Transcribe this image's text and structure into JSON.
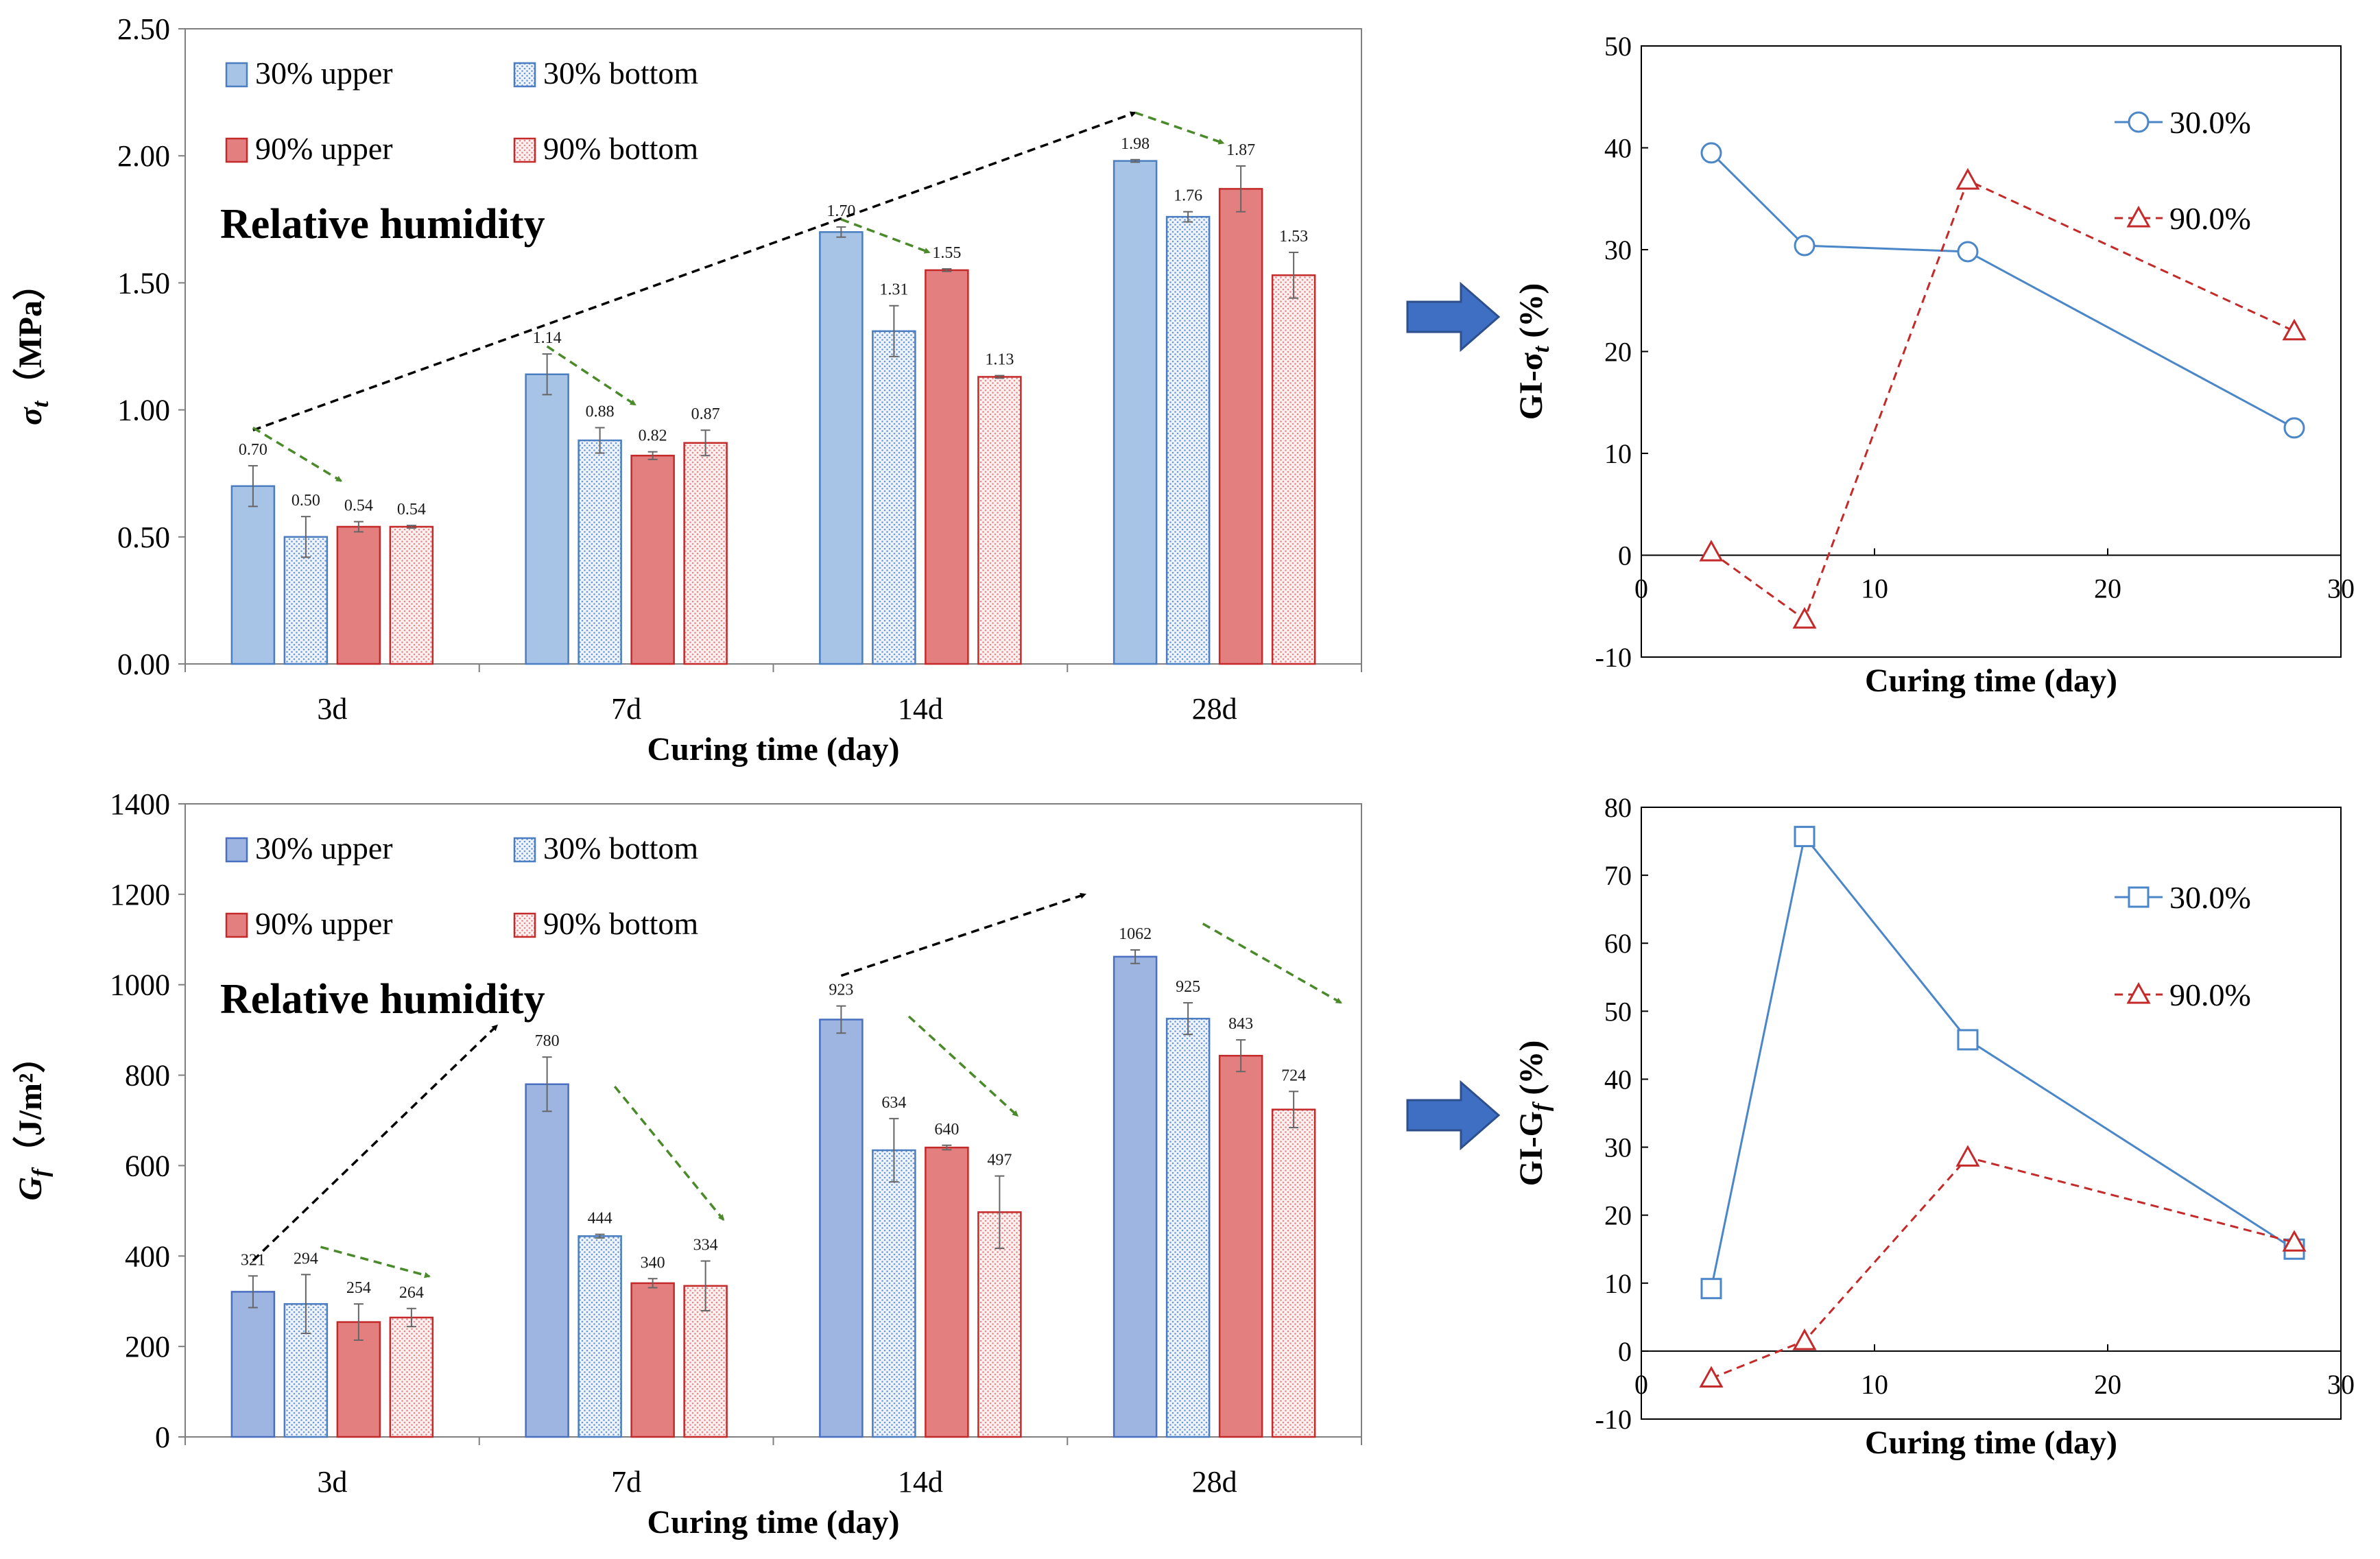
{
  "chart_data": [
    {
      "id": "tensile-bar-chart",
      "type": "bar",
      "title": "",
      "xlabel": "Curing time (day)",
      "ylabel_main": "σ",
      "ylabel_sub": "t",
      "ylabel_unit": "（MPa）",
      "ylim": [
        0,
        2.5
      ],
      "yticks": [
        "0.00",
        "0.50",
        "1.00",
        "1.50",
        "2.00",
        "2.50"
      ],
      "categories": [
        "3d",
        "7d",
        "14d",
        "28d"
      ],
      "annotation": "Relative humidity",
      "series": [
        {
          "name": "30% upper",
          "values": [
            0.7,
            1.14,
            1.7,
            1.98
          ],
          "labels": [
            "0.70",
            "1.14",
            "1.70",
            "1.98"
          ],
          "errors": [
            0.08,
            0.08,
            0.02,
            0.005
          ],
          "color": "#a7c3e6",
          "edge": "#4a7ec0",
          "pattern": false
        },
        {
          "name": "30% bottom",
          "values": [
            0.5,
            0.88,
            1.31,
            1.76
          ],
          "labels": [
            "0.50",
            "0.88",
            "1.31",
            "1.76"
          ],
          "errors": [
            0.08,
            0.05,
            0.1,
            0.02
          ],
          "color": "#dbe7f6",
          "edge": "#4a7ec0",
          "pattern": true
        },
        {
          "name": "90% upper",
          "values": [
            0.54,
            0.82,
            1.55,
            1.87
          ],
          "labels": [
            "0.54",
            "0.82",
            "1.55",
            "1.87"
          ],
          "errors": [
            0.02,
            0.015,
            0.005,
            0.09
          ],
          "color": "#e37f7f",
          "edge": "#c42a2a",
          "pattern": false
        },
        {
          "name": "90% bottom",
          "values": [
            0.54,
            0.87,
            1.13,
            1.53
          ],
          "labels": [
            "0.54",
            "0.87",
            "1.13",
            "1.53"
          ],
          "errors": [
            0.005,
            0.05,
            0.005,
            0.09
          ],
          "color": "#f8dede",
          "edge": "#c42a2a",
          "pattern": true
        }
      ],
      "trend_arrows": [
        {
          "from": [
            0,
            0.92
          ],
          "to": [
            3,
            2.17
          ],
          "color": "#000000"
        },
        {
          "from": [
            0,
            0.93
          ],
          "to": [
            0.3,
            0.72
          ],
          "color": "#4a8a2a"
        },
        {
          "from": [
            1,
            1.25
          ],
          "to": [
            1.3,
            1.02
          ],
          "color": "#4a8a2a"
        },
        {
          "from": [
            2,
            1.75
          ],
          "to": [
            2.3,
            1.62
          ],
          "color": "#4a8a2a"
        },
        {
          "from": [
            3,
            2.17
          ],
          "to": [
            3.3,
            2.05
          ],
          "color": "#4a8a2a"
        }
      ]
    },
    {
      "id": "fracture-energy-bar-chart",
      "type": "bar",
      "title": "",
      "xlabel": "Curing time (day)",
      "ylabel_main": "G",
      "ylabel_sub": "f",
      "ylabel_unit": "（J/m²）",
      "ylim": [
        0,
        1400
      ],
      "yticks": [
        "0",
        "200",
        "400",
        "600",
        "800",
        "1000",
        "1200",
        "1400"
      ],
      "categories": [
        "3d",
        "7d",
        "14d",
        "28d"
      ],
      "annotation": "Relative humidity",
      "series": [
        {
          "name": "30% upper",
          "values": [
            321,
            780,
            923,
            1062
          ],
          "labels": [
            "321",
            "780",
            "923",
            "1062"
          ],
          "errors": [
            35,
            60,
            30,
            15
          ],
          "color": "#9db5e0",
          "edge": "#4a6fc0",
          "pattern": false
        },
        {
          "name": "30% bottom",
          "values": [
            294,
            444,
            634,
            925
          ],
          "labels": [
            "294",
            "444",
            "634",
            "925"
          ],
          "errors": [
            65,
            4,
            70,
            35
          ],
          "color": "#dbe7f6",
          "edge": "#4a7ec0",
          "pattern": true
        },
        {
          "name": "90% upper",
          "values": [
            254,
            340,
            640,
            843
          ],
          "labels": [
            "254",
            "340",
            "640",
            "843"
          ],
          "errors": [
            40,
            10,
            5,
            35
          ],
          "color": "#e37f7f",
          "edge": "#c42a2a",
          "pattern": false
        },
        {
          "name": "90% bottom",
          "values": [
            264,
            334,
            497,
            724
          ],
          "labels": [
            "264",
            "334",
            "497",
            "724"
          ],
          "errors": [
            20,
            55,
            80,
            40
          ],
          "color": "#f8dede",
          "edge": "#c42a2a",
          "pattern": true
        }
      ],
      "trend_arrows": [
        {
          "from": [
            0,
            390
          ],
          "to": [
            0.83,
            910
          ],
          "color": "#000000"
        },
        {
          "from": [
            2,
            1020
          ],
          "to": [
            2.83,
            1200
          ],
          "color": "#000000"
        },
        {
          "from": [
            0.23,
            420
          ],
          "to": [
            0.6,
            355
          ],
          "color": "#4a8a2a"
        },
        {
          "from": [
            1.23,
            775
          ],
          "to": [
            1.6,
            480
          ],
          "color": "#4a8a2a"
        },
        {
          "from": [
            2.23,
            930
          ],
          "to": [
            2.6,
            710
          ],
          "color": "#4a8a2a"
        },
        {
          "from": [
            3.23,
            1135
          ],
          "to": [
            3.7,
            960
          ],
          "color": "#4a8a2a"
        }
      ]
    },
    {
      "id": "gi-sigma-line-chart",
      "type": "line",
      "title": "",
      "xlabel": "Curing time (day)",
      "ylabel_main": "GI-σ",
      "ylabel_sub": "t",
      "ylabel_unit": " (%)",
      "xlim": [
        0,
        30
      ],
      "ylim": [
        -10,
        50
      ],
      "xticks": [
        "0",
        "10",
        "20",
        "30"
      ],
      "yticks": [
        "-10",
        "0",
        "10",
        "20",
        "30",
        "40",
        "50"
      ],
      "series": [
        {
          "name": "30.0%",
          "x": [
            3,
            7,
            14,
            28
          ],
          "y": [
            39.5,
            30.4,
            29.8,
            12.5
          ],
          "color": "#4a86c8",
          "marker": "circle",
          "dashed": false
        },
        {
          "name": "90.0%",
          "x": [
            3,
            7,
            14,
            28
          ],
          "y": [
            0.3,
            -6.3,
            36.8,
            22.0
          ],
          "color": "#c42a2a",
          "marker": "triangle",
          "dashed": true
        }
      ]
    },
    {
      "id": "gi-gf-line-chart",
      "type": "line",
      "title": "",
      "xlabel": "Curing time (day)",
      "ylabel_main": "GI-G",
      "ylabel_sub": "f",
      "ylabel_unit": " (%)",
      "xlim": [
        0,
        30
      ],
      "ylim": [
        -10,
        80
      ],
      "xticks": [
        "0",
        "10",
        "20",
        "30"
      ],
      "yticks": [
        "-10",
        "0",
        "10",
        "20",
        "30",
        "40",
        "50",
        "60",
        "70",
        "80"
      ],
      "series": [
        {
          "name": "30.0%",
          "x": [
            3,
            7,
            14,
            28
          ],
          "y": [
            9.2,
            75.7,
            45.8,
            15.0
          ],
          "color": "#4a86c8",
          "marker": "square",
          "dashed": false
        },
        {
          "name": "90.0%",
          "x": [
            3,
            7,
            14,
            28
          ],
          "y": [
            -4.0,
            1.5,
            28.5,
            16.0
          ],
          "color": "#c42a2a",
          "marker": "triangle",
          "dashed": true
        }
      ]
    }
  ],
  "arrow_color": "#3f6fc2"
}
